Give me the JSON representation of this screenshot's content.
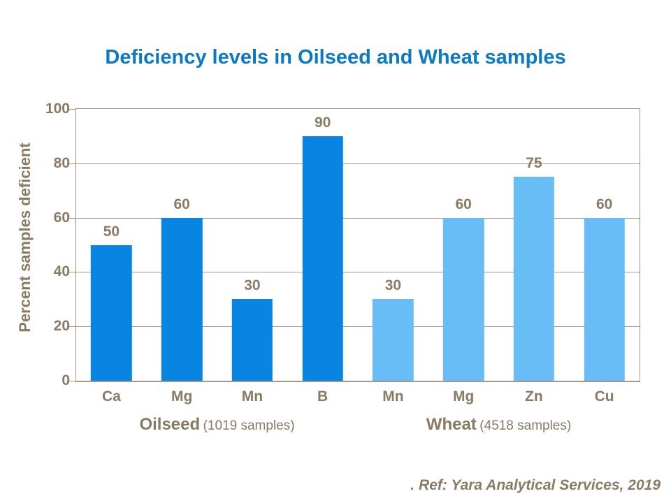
{
  "title": "Deficiency levels in Oilseed and Wheat samples",
  "footer": {
    "ref": ". Ref: Yara Analytical Services, 2019"
  },
  "colors": {
    "title_blue": "#0b7ac5",
    "oilseed_bar": "#0884e2",
    "wheat_bar": "#68bdf6",
    "axis_text_brown": "#8a7a64",
    "gridline": "#a3968a"
  },
  "chart_data": {
    "type": "bar",
    "title": "Deficiency levels in Oilseed and Wheat samples",
    "xlabel": "",
    "ylabel": "Percent samples deficient",
    "ylim": [
      0,
      100
    ],
    "yticks": [
      0,
      20,
      40,
      60,
      80,
      100
    ],
    "grid": true,
    "legend_position": "none",
    "categories": [
      "Ca",
      "Mg",
      "Mn",
      "B",
      "Mn",
      "Mg",
      "Zn",
      "Cu"
    ],
    "values": [
      50,
      60,
      30,
      90,
      30,
      60,
      75,
      60
    ],
    "bar_colors": [
      "#0884e2",
      "#0884e2",
      "#0884e2",
      "#0884e2",
      "#68bdf6",
      "#68bdf6",
      "#68bdf6",
      "#68bdf6"
    ],
    "groups": [
      {
        "label": "Oilseed",
        "note": "(1019 samples)",
        "color": "#0884e2",
        "categories": [
          "Ca",
          "Mg",
          "Mn",
          "B"
        ],
        "values": [
          50,
          60,
          30,
          90
        ]
      },
      {
        "label": "Wheat",
        "note": "(4518 samples)",
        "color": "#68bdf6",
        "categories": [
          "Mn",
          "Mg",
          "Zn",
          "Cu"
        ],
        "values": [
          30,
          60,
          75,
          60
        ]
      }
    ]
  }
}
